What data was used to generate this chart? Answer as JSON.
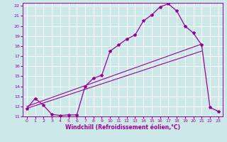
{
  "xlabel": "Windchill (Refroidissement éolien,°C)",
  "bg_color": "#cce8e8",
  "grid_color": "#ffffff",
  "line_color": "#990099",
  "xlim": [
    -0.5,
    23.5
  ],
  "ylim": [
    11,
    22.3
  ],
  "xticks": [
    0,
    1,
    2,
    3,
    4,
    5,
    6,
    7,
    8,
    9,
    10,
    11,
    12,
    13,
    14,
    15,
    16,
    17,
    18,
    19,
    20,
    21,
    22,
    23
  ],
  "yticks": [
    11,
    12,
    13,
    14,
    15,
    16,
    17,
    18,
    19,
    20,
    21,
    22
  ],
  "curve1_x": [
    0,
    1,
    2,
    3,
    4,
    5,
    6,
    7,
    8,
    9,
    10,
    11,
    12,
    13,
    14,
    15,
    16,
    17,
    18,
    19,
    20,
    21,
    22,
    23
  ],
  "curve1_y": [
    11.8,
    12.8,
    12.1,
    11.2,
    11.1,
    11.15,
    11.15,
    14.0,
    14.8,
    15.1,
    17.5,
    18.1,
    18.7,
    19.1,
    20.5,
    21.1,
    21.9,
    22.2,
    21.5,
    20.0,
    19.3,
    18.1,
    11.9,
    11.5
  ],
  "line1_x": [
    0,
    21
  ],
  "line1_y": [
    12.0,
    18.2
  ],
  "line2_x": [
    0,
    21
  ],
  "line2_y": [
    11.8,
    17.5
  ],
  "xlabel_fontsize": 5.5,
  "tick_fontsize": 4.5
}
